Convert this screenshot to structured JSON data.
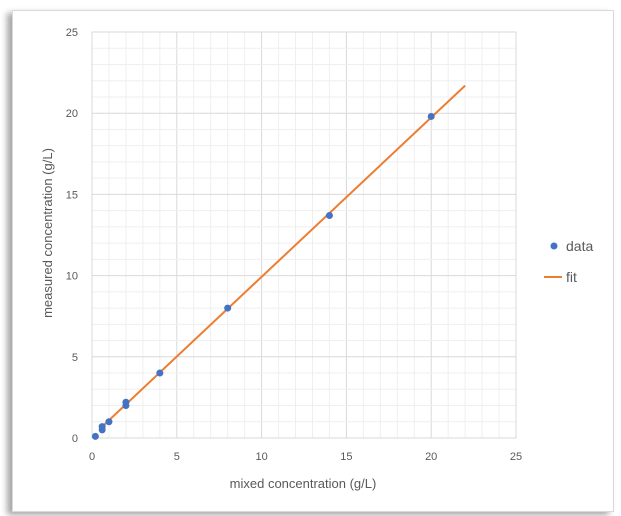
{
  "chart_data": {
    "type": "scatter",
    "xlabel": "mixed concentration (g/L)",
    "ylabel": "measured concentration (g/L)",
    "xlim": [
      0,
      25
    ],
    "ylim": [
      0,
      25
    ],
    "x_ticks": [
      0,
      5,
      10,
      15,
      20,
      25
    ],
    "y_ticks": [
      0,
      5,
      10,
      15,
      20,
      25
    ],
    "grid": true,
    "legend_position": "right",
    "series": [
      {
        "name": "data",
        "kind": "scatter",
        "color": "#4472C4",
        "points": [
          {
            "x": 0.2,
            "y": 0.1
          },
          {
            "x": 0.6,
            "y": 0.5
          },
          {
            "x": 0.6,
            "y": 0.7
          },
          {
            "x": 1.0,
            "y": 1.0
          },
          {
            "x": 2.0,
            "y": 2.0
          },
          {
            "x": 2.0,
            "y": 2.2
          },
          {
            "x": 4.0,
            "y": 4.0
          },
          {
            "x": 8.0,
            "y": 8.0
          },
          {
            "x": 14.0,
            "y": 13.7
          },
          {
            "x": 20.0,
            "y": 19.8
          }
        ]
      },
      {
        "name": "fit",
        "kind": "line",
        "color": "#ED7D31",
        "points": [
          {
            "x": 0.5,
            "y": 0.6
          },
          {
            "x": 22.0,
            "y": 21.7
          }
        ]
      }
    ]
  }
}
